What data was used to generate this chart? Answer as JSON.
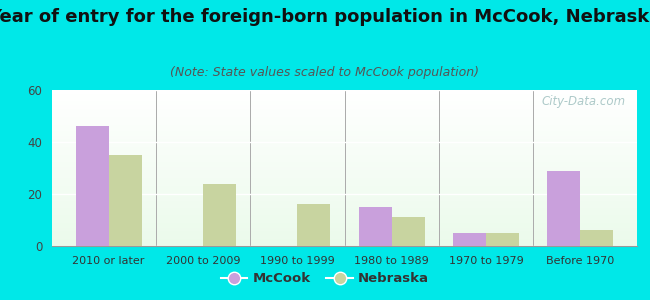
{
  "title": "Year of entry for the foreign-born population in McCook, Nebraska",
  "subtitle": "(Note: State values scaled to McCook population)",
  "categories": [
    "2010 or later",
    "2000 to 2009",
    "1990 to 1999",
    "1980 to 1989",
    "1970 to 1979",
    "Before 1970"
  ],
  "mccook_values": [
    46,
    0,
    0,
    15,
    5,
    29
  ],
  "nebraska_values": [
    35,
    24,
    16,
    11,
    5,
    6
  ],
  "mccook_color": "#c9a0dc",
  "nebraska_color": "#c8d4a0",
  "ylim": [
    0,
    60
  ],
  "yticks": [
    0,
    20,
    40,
    60
  ],
  "background_outer": "#00e8e8",
  "title_fontsize": 13,
  "subtitle_fontsize": 9,
  "bar_width": 0.35,
  "watermark_text": "City-Data.com"
}
